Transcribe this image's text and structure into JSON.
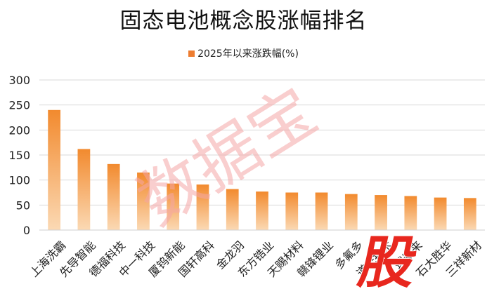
{
  "chart_data": {
    "type": "bar",
    "title": "固态电池概念股涨幅排名",
    "series": [
      {
        "name": "2025年以来涨跌幅(%)",
        "values": [
          240,
          162,
          132,
          115,
          93,
          91,
          82,
          77,
          75,
          75,
          72,
          70,
          68,
          65,
          64
        ]
      }
    ],
    "categories": [
      "上海洗霸",
      "先导智能",
      "德福科技",
      "中一科技",
      "厦钨新能",
      "国轩高科",
      "金龙羽",
      "东方锆业",
      "天赐材料",
      "赣锋锂业",
      "多氟多",
      "道氏技术",
      "璞泰来",
      "石大胜华",
      "三祥新材"
    ],
    "yticks": [
      0,
      50,
      100,
      150,
      200,
      250,
      300
    ],
    "ylim": [
      0,
      300
    ],
    "grid": true,
    "legend_position": "top",
    "colors": {
      "bar_top": "#F28A2E",
      "bar_bottom": "#FBD9B4",
      "watermark": "#F4A6A6",
      "badge": "#E8271E"
    }
  },
  "watermark": {
    "text": "数据宝",
    "badge": "股"
  }
}
